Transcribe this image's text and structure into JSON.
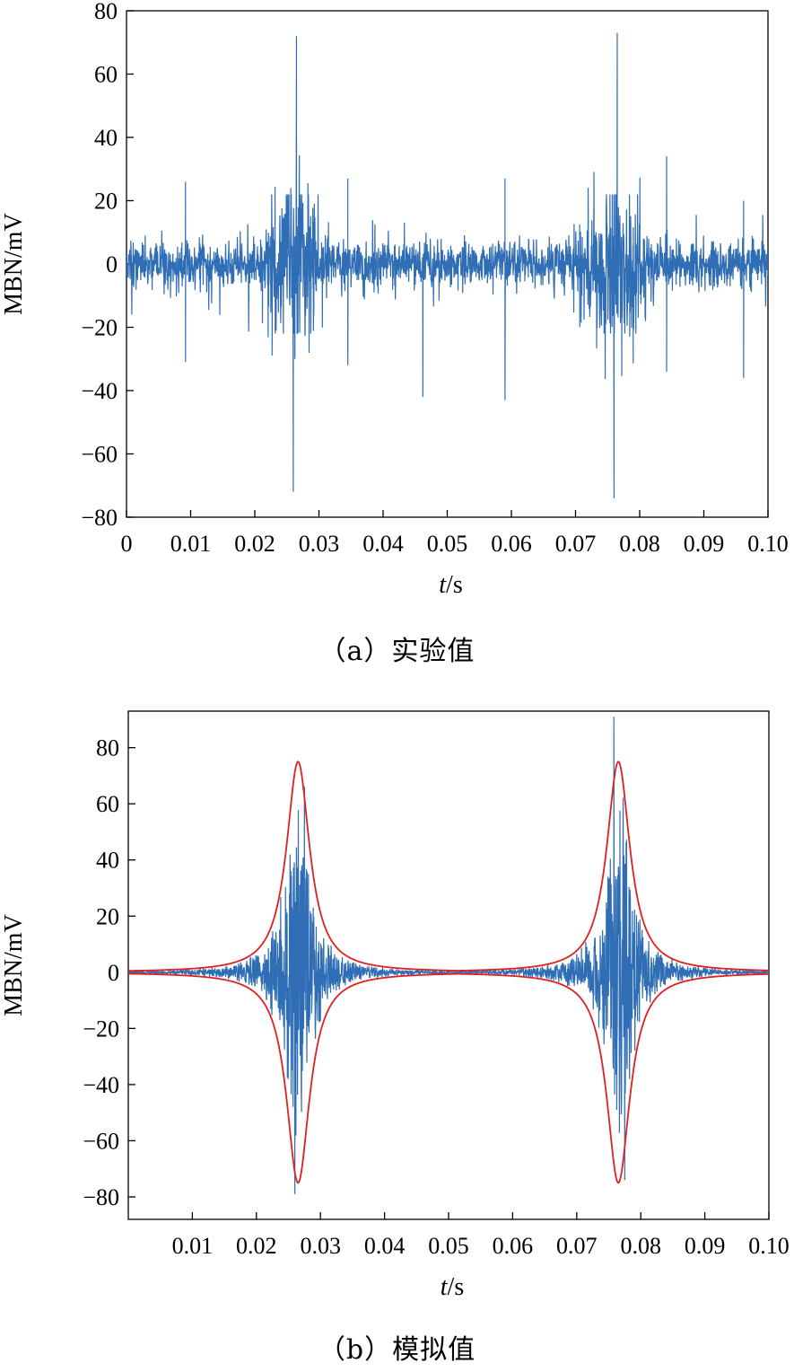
{
  "chart_data": [
    {
      "type": "line",
      "panel": "a",
      "caption": "（a）实验值",
      "xlabel_italic": "t",
      "xlabel_unit": "/s",
      "ylabel": "MBN/mV",
      "xlim": [
        0,
        0.1
      ],
      "ylim": [
        -80,
        80
      ],
      "x_ticks": [
        0,
        0.01,
        0.02,
        0.03,
        0.04,
        0.05,
        0.06,
        0.07,
        0.08,
        0.09,
        0.1
      ],
      "x_tick_labels": [
        "0",
        "0.01",
        "0.02",
        "0.03",
        "0.04",
        "0.05",
        "0.06",
        "0.07",
        "0.08",
        "0.09",
        "0.10"
      ],
      "y_ticks": [
        -80,
        -60,
        -40,
        -20,
        0,
        20,
        40,
        60,
        80
      ],
      "y_tick_labels": [
        "−80",
        "−60",
        "−40",
        "−20",
        "0",
        "20",
        "40",
        "60",
        "80"
      ],
      "series": [
        {
          "color": "#2f6db5",
          "description_points": {
            "baseline_amplitude": 10,
            "burst_centers": [
              0.026,
              0.076
            ],
            "peaks": [
              {
                "x": 0.0265,
                "y": 72
              },
              {
                "x": 0.026,
                "y": -72
              },
              {
                "x": 0.0765,
                "y": 73
              },
              {
                "x": 0.076,
                "y": -74
              },
              {
                "x": 0.0092,
                "y": 26
              },
              {
                "x": 0.0092,
                "y": -31
              },
              {
                "x": 0.0345,
                "y": 27
              },
              {
                "x": 0.0345,
                "y": -32
              },
              {
                "x": 0.0462,
                "y": -42
              },
              {
                "x": 0.059,
                "y": 27
              },
              {
                "x": 0.059,
                "y": -43
              },
              {
                "x": 0.0842,
                "y": 34
              },
              {
                "x": 0.0842,
                "y": -34
              },
              {
                "x": 0.0962,
                "y": 20
              },
              {
                "x": 0.0962,
                "y": -36
              }
            ]
          }
        }
      ]
    },
    {
      "type": "line",
      "panel": "b",
      "caption": "（b）模拟值",
      "xlabel_italic": "t",
      "xlabel_unit": "/s",
      "ylabel": "MBN/mV",
      "xlim": [
        0,
        0.1
      ],
      "ylim": [
        -88,
        93
      ],
      "x_ticks": [
        0.01,
        0.02,
        0.03,
        0.04,
        0.05,
        0.06,
        0.07,
        0.08,
        0.09,
        0.1
      ],
      "x_tick_labels": [
        "0.01",
        "0.02",
        "0.03",
        "0.04",
        "0.05",
        "0.06",
        "0.07",
        "0.08",
        "0.09",
        "0.10"
      ],
      "y_ticks": [
        -80,
        -60,
        -40,
        -20,
        0,
        20,
        40,
        60,
        80
      ],
      "y_tick_labels": [
        "−80",
        "−60",
        "−40",
        "−20",
        "0",
        "20",
        "40",
        "60",
        "80"
      ],
      "series": [
        {
          "color": "#2f6db5",
          "burst_centers": [
            0.0265,
            0.0765
          ],
          "peaks": [
            {
              "x": 0.0275,
              "y": 66
            },
            {
              "x": 0.026,
              "y": -79
            },
            {
              "x": 0.0758,
              "y": 91
            },
            {
              "x": 0.0775,
              "y": -74
            }
          ]
        },
        {
          "color": "#e02020",
          "envelope_peak": 75,
          "envelope_centers": [
            0.0265,
            0.0765
          ]
        }
      ]
    }
  ]
}
